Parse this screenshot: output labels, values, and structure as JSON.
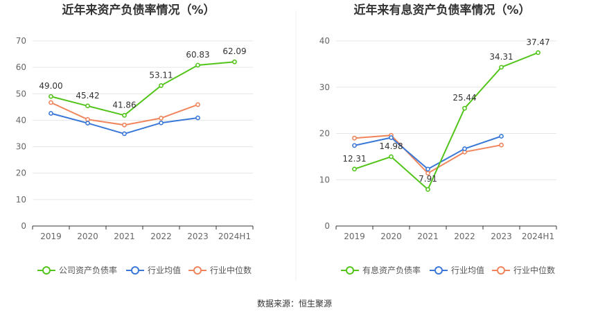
{
  "source": "数据来源：恒生聚源",
  "chart_data": [
    {
      "type": "line",
      "title": "近年来资产负债率情况（%）",
      "categories": [
        "2019",
        "2020",
        "2021",
        "2022",
        "2023",
        "2024H1"
      ],
      "ylim": [
        0,
        70
      ],
      "yticks": [
        0,
        10,
        20,
        30,
        40,
        50,
        60,
        70
      ],
      "grid": true,
      "legend_position": "bottom",
      "series": [
        {
          "name": "公司资产负债率",
          "color": "#52c41a",
          "values": [
            49.0,
            45.42,
            41.86,
            53.11,
            60.83,
            62.09
          ],
          "labels": [
            "49.00",
            "45.42",
            "41.86",
            "53.11",
            "60.83",
            "62.09"
          ]
        },
        {
          "name": "行业均值",
          "color": "#3a78d8",
          "values": [
            42.6,
            38.9,
            34.9,
            39.0,
            40.9,
            null
          ]
        },
        {
          "name": "行业中位数",
          "color": "#f0855c",
          "values": [
            46.7,
            40.3,
            38.2,
            40.8,
            45.9,
            null
          ]
        }
      ]
    },
    {
      "type": "line",
      "title": "近年来有息资产负债率情况（%）",
      "categories": [
        "2019",
        "2020",
        "2021",
        "2022",
        "2023",
        "2024H1"
      ],
      "ylim": [
        0,
        40
      ],
      "yticks": [
        0,
        10,
        20,
        30,
        40
      ],
      "grid": true,
      "legend_position": "bottom",
      "series": [
        {
          "name": "有息资产负债率",
          "color": "#52c41a",
          "values": [
            12.31,
            14.98,
            7.91,
            25.44,
            34.31,
            37.47
          ],
          "labels": [
            "12.31",
            "14.98",
            "7.91",
            "25.44",
            "34.31",
            "37.47"
          ]
        },
        {
          "name": "行业均值",
          "color": "#3a78d8",
          "values": [
            17.4,
            19.1,
            12.3,
            16.7,
            19.4,
            null
          ]
        },
        {
          "name": "行业中位数",
          "color": "#f0855c",
          "values": [
            19.0,
            19.6,
            11.4,
            16.0,
            17.5,
            null
          ]
        }
      ]
    }
  ]
}
